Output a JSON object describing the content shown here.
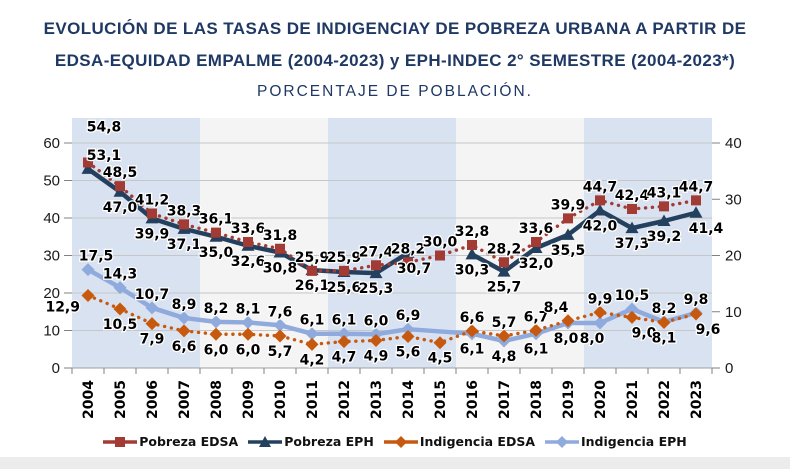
{
  "title": {
    "line1": "EVOLUCIÓN DE LAS TASAS DE INDIGENCIAY DE POBREZA URBANA A PARTIR DE",
    "line2": "EDSA-EQUIDAD EMPALME (2004-2023) y EPH-INDEC 2°  SEMESTRE (2004-2023*)",
    "subtitle": "PORCENTAJE DE POBLACIÓN.",
    "color": "#1F3864"
  },
  "chart_data": {
    "type": "line",
    "x": [
      "2004",
      "2005",
      "2006",
      "2007",
      "2008",
      "2009",
      "2010",
      "2011",
      "2012",
      "2013",
      "2014",
      "2015",
      "2016",
      "2017",
      "2018",
      "2019",
      "2020",
      "2021",
      "2022",
      "2023"
    ],
    "left_axis": {
      "min": 0,
      "max": 60,
      "ticks": [
        0,
        10,
        20,
        30,
        40,
        50,
        60
      ]
    },
    "right_axis": {
      "min": 0,
      "max": 40,
      "ticks": [
        0,
        10,
        20,
        30,
        40
      ]
    },
    "grid": "horizontal",
    "gridline_color": "#C6C6C6",
    "plot_bands": {
      "years_per_band": 4,
      "colors": [
        "#D9E2F0",
        "#F4F4F4"
      ]
    },
    "decimal_separator": ",",
    "legend_position": "bottom",
    "series": [
      {
        "name": "Pobreza EDSA",
        "axis": "left",
        "color": "#A23B33",
        "line_style": "dotted",
        "marker": "square",
        "connect_gaps": true,
        "values": [
          54.8,
          48.5,
          41.2,
          38.3,
          36.1,
          33.6,
          31.8,
          25.9,
          25.9,
          27.4,
          28.2,
          30.0,
          32.8,
          28.2,
          33.6,
          39.9,
          44.7,
          42.4,
          43.1,
          44.7
        ]
      },
      {
        "name": "Pobreza EPH",
        "axis": "left",
        "color": "#24405F",
        "line_style": "solid",
        "marker": "triangle",
        "connect_gaps": false,
        "values": [
          53.1,
          47.0,
          39.9,
          37.1,
          35.0,
          32.6,
          30.8,
          26.1,
          25.6,
          25.3,
          30.7,
          null,
          30.3,
          25.7,
          32.0,
          35.5,
          42.0,
          37.3,
          39.2,
          41.4
        ]
      },
      {
        "name": "Indigencia EDSA",
        "axis": "right",
        "color": "#C7590E",
        "line_style": "dotted",
        "marker": "diamond",
        "connect_gaps": true,
        "values": [
          12.9,
          10.5,
          7.9,
          6.6,
          6.0,
          6.0,
          5.7,
          4.2,
          4.7,
          4.9,
          5.6,
          4.5,
          6.6,
          5.7,
          6.7,
          8.4,
          9.9,
          9.0,
          8.1,
          9.6
        ]
      },
      {
        "name": "Indigencia EPH",
        "axis": "right",
        "color": "#8FAADC",
        "line_style": "solid",
        "marker": "diamond",
        "connect_gaps": true,
        "values": [
          17.5,
          14.3,
          10.7,
          8.9,
          8.2,
          8.1,
          7.6,
          6.1,
          6.1,
          6.0,
          6.9,
          null,
          6.1,
          4.8,
          6.1,
          8.0,
          8.0,
          10.5,
          8.2,
          9.8
        ]
      }
    ]
  }
}
